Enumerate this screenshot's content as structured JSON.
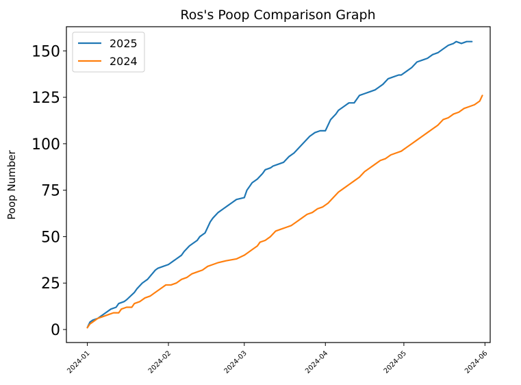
{
  "chart_data": {
    "type": "line",
    "title": "Ros's Poop Comparison Graph",
    "xlabel": "",
    "ylabel": "Poop Number",
    "xlim": [
      "2023-12-24",
      "2024-06-03"
    ],
    "ylim": [
      -7,
      163
    ],
    "grid": false,
    "legend_position": "top-left",
    "x_ticks": [
      "2024-01-01",
      "2024-02-01",
      "2024-03-01",
      "2024-04-01",
      "2024-05-01",
      "2024-06-01"
    ],
    "x_tick_labels": [
      "2024-01",
      "2024-02",
      "2024-03",
      "2024-04",
      "2024-05",
      "2024-06"
    ],
    "y_ticks": [
      0,
      25,
      50,
      75,
      100,
      125,
      150
    ],
    "y_tick_labels": [
      "0",
      "25",
      "50",
      "75",
      "100",
      "125",
      "150"
    ],
    "series": [
      {
        "name": "2025",
        "color": "#1f77b4",
        "x": [
          "2024-01-01",
          "2024-01-02",
          "2024-01-03",
          "2024-01-05",
          "2024-01-06",
          "2024-01-08",
          "2024-01-10",
          "2024-01-12",
          "2024-01-13",
          "2024-01-15",
          "2024-01-16",
          "2024-01-19",
          "2024-01-20",
          "2024-01-22",
          "2024-01-23",
          "2024-01-24",
          "2024-01-27",
          "2024-01-28",
          "2024-01-30",
          "2024-02-01",
          "2024-02-03",
          "2024-02-04",
          "2024-02-06",
          "2024-02-07",
          "2024-02-09",
          "2024-02-10",
          "2024-02-12",
          "2024-02-13",
          "2024-02-15",
          "2024-02-16",
          "2024-02-17",
          "2024-02-18",
          "2024-02-20",
          "2024-02-22",
          "2024-02-24",
          "2024-02-25",
          "2024-02-27",
          "2024-03-01",
          "2024-03-02",
          "2024-03-03",
          "2024-03-04",
          "2024-03-06",
          "2024-03-08",
          "2024-03-09",
          "2024-03-11",
          "2024-03-12",
          "2024-03-14",
          "2024-03-16",
          "2024-03-18",
          "2024-03-20",
          "2024-03-22",
          "2024-03-24",
          "2024-03-26",
          "2024-03-28",
          "2024-03-30",
          "2024-04-01",
          "2024-04-03",
          "2024-04-05",
          "2024-04-06",
          "2024-04-08",
          "2024-04-10",
          "2024-04-12",
          "2024-04-14",
          "2024-04-16",
          "2024-04-18",
          "2024-04-20",
          "2024-04-21",
          "2024-04-23",
          "2024-04-25",
          "2024-04-27",
          "2024-04-29",
          "2024-04-30",
          "2024-05-02",
          "2024-05-04",
          "2024-05-06",
          "2024-05-08",
          "2024-05-10",
          "2024-05-12",
          "2024-05-14",
          "2024-05-16",
          "2024-05-18",
          "2024-05-20",
          "2024-05-21",
          "2024-05-23",
          "2024-05-25",
          "2024-05-26",
          "2024-05-27"
        ],
        "y": [
          1,
          4,
          5,
          6,
          7,
          9,
          11,
          12,
          14,
          15,
          16,
          20,
          22,
          25,
          26,
          27,
          32,
          33,
          34,
          35,
          37,
          38,
          40,
          42,
          45,
          46,
          48,
          50,
          52,
          55,
          58,
          60,
          63,
          65,
          67,
          68,
          70,
          71,
          75,
          77,
          79,
          81,
          84,
          86,
          87,
          88,
          89,
          90,
          93,
          95,
          98,
          101,
          104,
          106,
          107,
          107,
          113,
          116,
          118,
          120,
          122,
          122,
          126,
          127,
          128,
          129,
          130,
          132,
          135,
          136,
          137,
          137,
          139,
          141,
          144,
          145,
          146,
          148,
          149,
          151,
          153,
          154,
          155,
          154,
          155,
          155,
          155
        ],
        "values_note_hidden": ""
      },
      {
        "name": "2024",
        "color": "#ff7f0e",
        "x": [
          "2024-01-01",
          "2024-01-02",
          "2024-01-03",
          "2024-01-05",
          "2024-01-07",
          "2024-01-09",
          "2024-01-11",
          "2024-01-13",
          "2024-01-14",
          "2024-01-16",
          "2024-01-18",
          "2024-01-19",
          "2024-01-21",
          "2024-01-23",
          "2024-01-25",
          "2024-01-27",
          "2024-01-29",
          "2024-01-31",
          "2024-02-02",
          "2024-02-04",
          "2024-02-06",
          "2024-02-08",
          "2024-02-10",
          "2024-02-12",
          "2024-02-14",
          "2024-02-16",
          "2024-02-18",
          "2024-02-20",
          "2024-02-23",
          "2024-02-27",
          "2024-03-01",
          "2024-03-02",
          "2024-03-04",
          "2024-03-06",
          "2024-03-07",
          "2024-03-09",
          "2024-03-11",
          "2024-03-13",
          "2024-03-15",
          "2024-03-17",
          "2024-03-19",
          "2024-03-21",
          "2024-03-23",
          "2024-03-25",
          "2024-03-27",
          "2024-03-29",
          "2024-03-31",
          "2024-04-02",
          "2024-04-04",
          "2024-04-06",
          "2024-04-08",
          "2024-04-10",
          "2024-04-12",
          "2024-04-14",
          "2024-04-16",
          "2024-04-18",
          "2024-04-20",
          "2024-04-22",
          "2024-04-24",
          "2024-04-26",
          "2024-04-28",
          "2024-04-30",
          "2024-05-02",
          "2024-05-04",
          "2024-05-06",
          "2024-05-08",
          "2024-05-10",
          "2024-05-12",
          "2024-05-14",
          "2024-05-16",
          "2024-05-18",
          "2024-05-20",
          "2024-05-22",
          "2024-05-24",
          "2024-05-26",
          "2024-05-28",
          "2024-05-30",
          "2024-05-31"
        ],
        "y": [
          1,
          3,
          4,
          6,
          7,
          8,
          9,
          9,
          11,
          12,
          12,
          14,
          15,
          17,
          18,
          20,
          22,
          24,
          24,
          25,
          27,
          28,
          30,
          31,
          32,
          34,
          35,
          36,
          37,
          38,
          40,
          41,
          43,
          45,
          47,
          48,
          50,
          53,
          54,
          55,
          56,
          58,
          60,
          62,
          63,
          65,
          66,
          68,
          71,
          74,
          76,
          78,
          80,
          82,
          85,
          87,
          89,
          91,
          92,
          94,
          95,
          96,
          98,
          100,
          102,
          104,
          106,
          108,
          110,
          113,
          114,
          116,
          117,
          119,
          120,
          121,
          123,
          126
        ],
        "values_note_hidden": ""
      }
    ]
  }
}
